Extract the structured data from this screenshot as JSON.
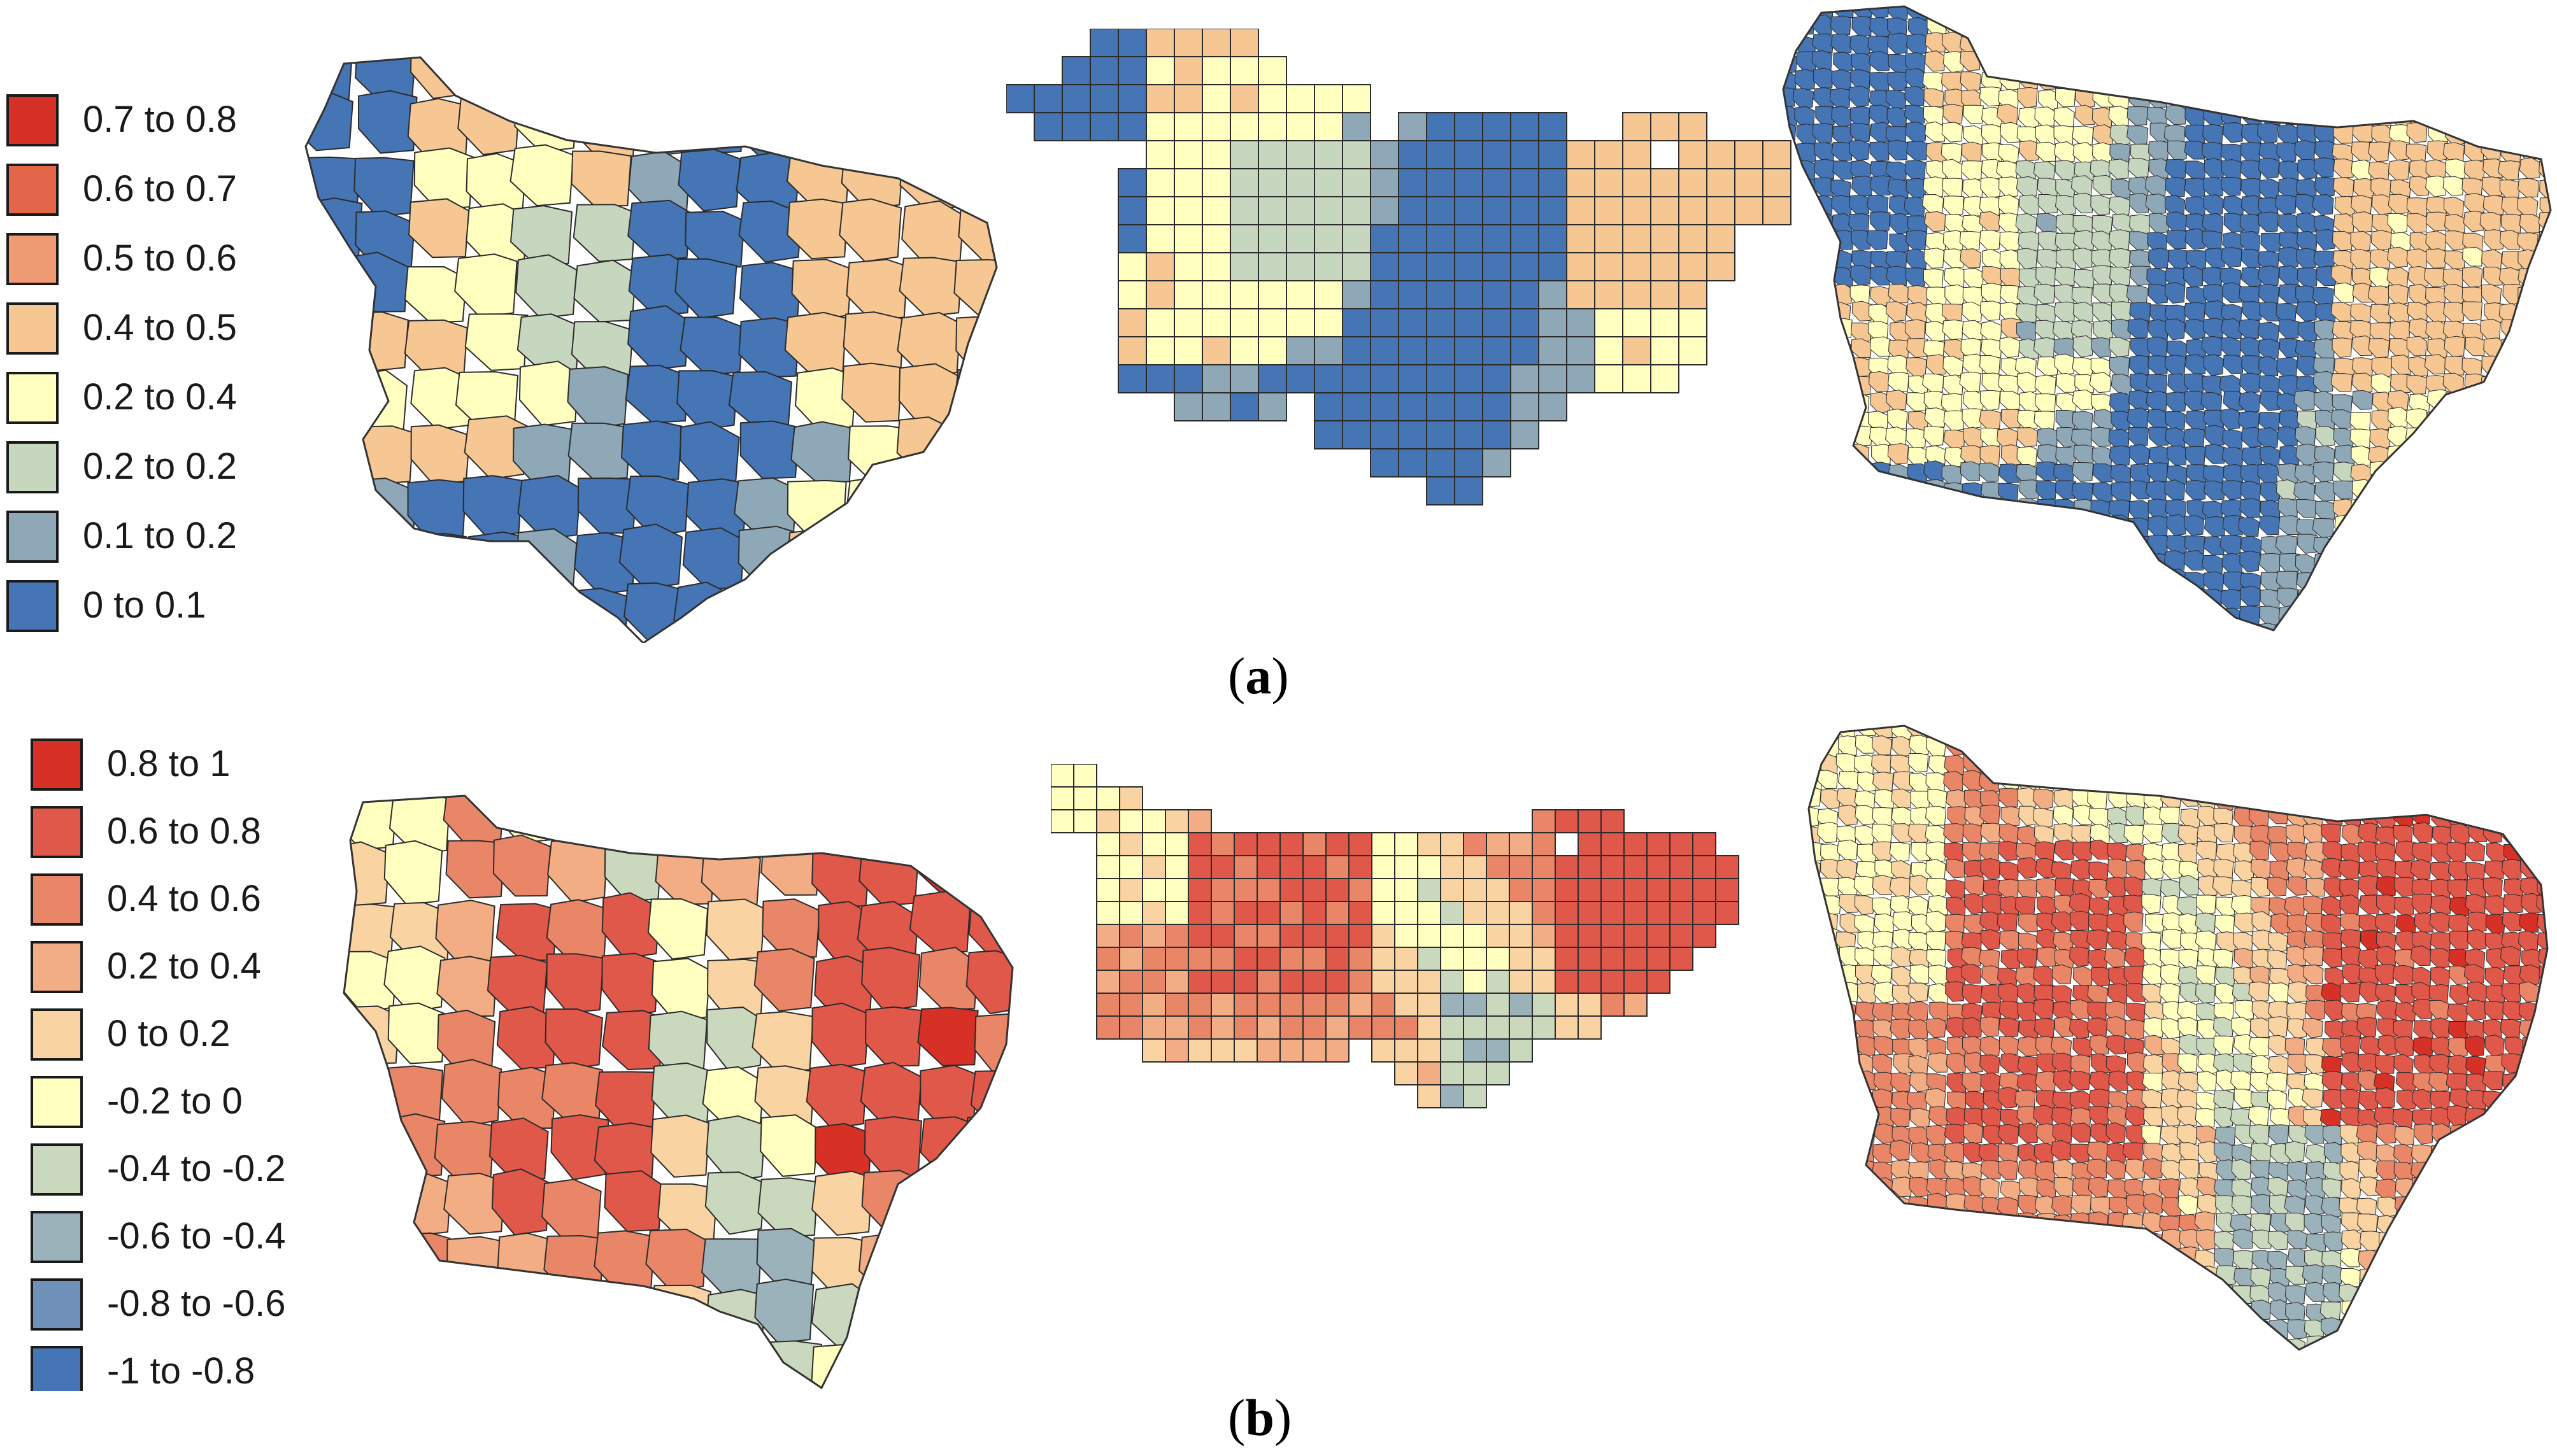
{
  "panel_a": {
    "label_open": "(",
    "label_letter": "a",
    "label_close": ")",
    "legend": [
      {
        "label": "0.7 to 0.8",
        "color": "#d73027"
      },
      {
        "label": "0.6 to 0.7",
        "color": "#e3664b"
      },
      {
        "label": "0.5 to 0.6",
        "color": "#ee9a72"
      },
      {
        "label": "0.4 to 0.5",
        "color": "#f6c793"
      },
      {
        "label": "0.2 to 0.4",
        "color": "#ffffbf"
      },
      {
        "label": "0.2 to 0.2",
        "color": "#c7d6be"
      },
      {
        "label": "0.1 to 0.2",
        "color": "#8fa8b8"
      },
      {
        "label": "0 to 0.1",
        "color": "#4575b4"
      }
    ]
  },
  "panel_b": {
    "label_open": "(",
    "label_letter": "b",
    "label_close": ")",
    "legend": [
      {
        "label": "0.8 to 1",
        "color": "#d73027"
      },
      {
        "label": "0.6 to 0.8",
        "color": "#e0584a"
      },
      {
        "label": "0.4 to 0.6",
        "color": "#e98668"
      },
      {
        "label": "0.2 to 0.4",
        "color": "#f2ad84"
      },
      {
        "label": "0 to 0.2",
        "color": "#f9d4a2"
      },
      {
        "label": "-0.2 to 0",
        "color": "#ffffbf"
      },
      {
        "label": "-0.4 to -0.2",
        "color": "#cad9bd"
      },
      {
        "label": "-0.6 to -0.4",
        "color": "#9bb2ba"
      },
      {
        "label": "-0.8 to -0.6",
        "color": "#6f90b7"
      },
      {
        "label": "-1 to -0.8",
        "color": "#4575b4"
      }
    ]
  }
}
